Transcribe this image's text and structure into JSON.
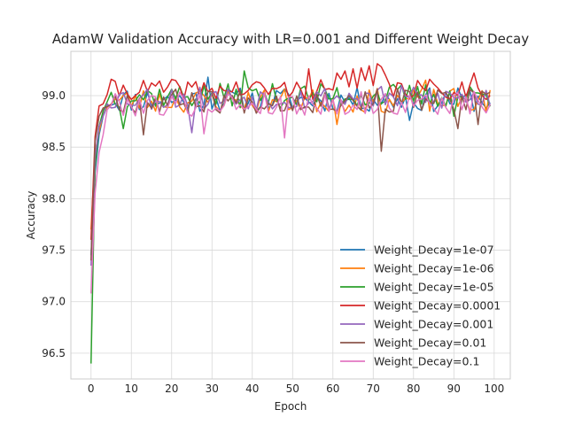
{
  "chart_data": {
    "type": "line",
    "title": "AdamW Validation Accuracy with LR=0.001 and Different Weight Decay",
    "xlabel": "Epoch",
    "ylabel": "Accuracy",
    "xlim": [
      -5,
      104
    ],
    "ylim": [
      96.25,
      99.43
    ],
    "xticks": [
      0,
      10,
      20,
      30,
      40,
      50,
      60,
      70,
      80,
      90,
      100
    ],
    "yticks": [
      96.5,
      97.0,
      97.5,
      98.0,
      98.5,
      99.0
    ],
    "grid": true,
    "legend_position": "lower-right",
    "series": [
      {
        "name": "Weight_Decay=1e-07",
        "color": "#1f77b4",
        "start": [
          97.45,
          98.25,
          98.62,
          98.8
        ],
        "level": 98.96,
        "amp": 0.12,
        "seed": 11,
        "events": [
          [
            29,
            99.18
          ],
          [
            79,
            98.76
          ]
        ]
      },
      {
        "name": "Weight_Decay=1e-06",
        "color": "#ff7f0e",
        "start": [
          97.7,
          98.45,
          98.65,
          98.82
        ],
        "level": 98.95,
        "amp": 0.12,
        "seed": 23,
        "events": [
          [
            61,
            98.72
          ],
          [
            83,
            99.15
          ]
        ]
      },
      {
        "name": "Weight_Decay=1e-05",
        "color": "#2ca02c",
        "start": [
          96.4,
          98.3,
          98.7,
          98.85
        ],
        "level": 99.0,
        "amp": 0.12,
        "seed": 37,
        "events": [
          [
            8,
            98.68
          ],
          [
            38,
            99.24
          ],
          [
            90,
            98.8
          ]
        ]
      },
      {
        "name": "Weight_Decay=0.0001",
        "color": "#d62728",
        "start": [
          97.6,
          98.6,
          98.9,
          98.92
        ],
        "level": 99.06,
        "amp": 0.1,
        "seed": 41,
        "events": [
          [
            54,
            99.26
          ],
          [
            61,
            99.22
          ],
          [
            63,
            99.24
          ],
          [
            65,
            99.26
          ],
          [
            67,
            99.27
          ],
          [
            69,
            99.29
          ],
          [
            71,
            99.31
          ],
          [
            72,
            99.28
          ],
          [
            73,
            99.2
          ],
          [
            95,
            99.22
          ]
        ]
      },
      {
        "name": "Weight_Decay=0.001",
        "color": "#9467bd",
        "start": [
          97.35,
          98.4,
          98.7,
          98.8
        ],
        "level": 98.98,
        "amp": 0.12,
        "seed": 53,
        "events": [
          [
            25,
            98.64
          ]
        ]
      },
      {
        "name": "Weight_Decay=0.01",
        "color": "#8c564b",
        "start": [
          97.4,
          98.55,
          98.8,
          98.88
        ],
        "level": 98.95,
        "amp": 0.12,
        "seed": 67,
        "events": [
          [
            13,
            98.62
          ],
          [
            72,
            98.46
          ],
          [
            91,
            98.68
          ],
          [
            96,
            98.72
          ]
        ]
      },
      {
        "name": "Weight_Decay=0.1",
        "color": "#e377c2",
        "start": [
          97.08,
          98.05,
          98.45,
          98.62
        ],
        "level": 98.92,
        "amp": 0.12,
        "seed": 79,
        "events": [
          [
            48,
            98.59
          ],
          [
            28,
            98.63
          ]
        ]
      }
    ]
  }
}
